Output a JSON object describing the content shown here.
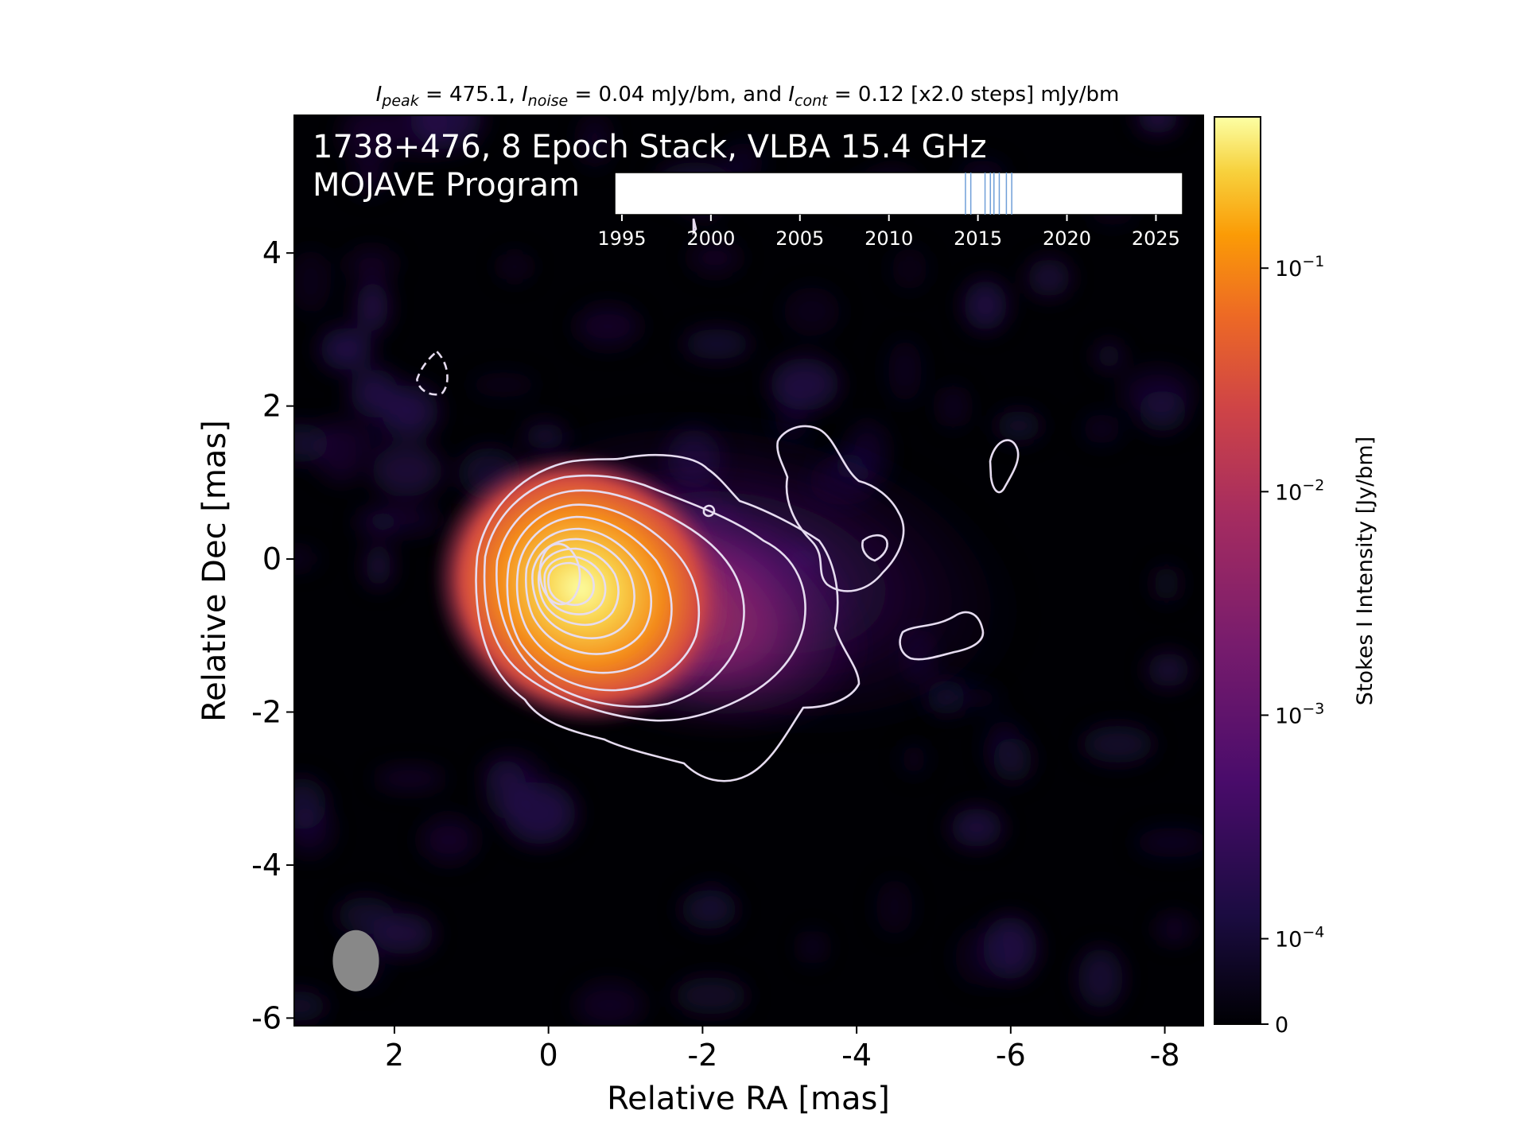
{
  "chart_data": {
    "type": "heatmap",
    "title": {
      "parts": [
        {
          "text": "I",
          "italic": true
        },
        {
          "text": "peak",
          "italic": true,
          "sub": true
        },
        {
          "text": " = 475.1, "
        },
        {
          "text": "I",
          "italic": true
        },
        {
          "text": "noise",
          "italic": true,
          "sub": true
        },
        {
          "text": " = 0.04 mJy/bm, and "
        },
        {
          "text": "I",
          "italic": true
        },
        {
          "text": "cont",
          "italic": true,
          "sub": true
        },
        {
          "text": " = 0.12 [x2.0 steps] mJy/bm"
        }
      ]
    },
    "annotation_lines": [
      "1738+476, 8 Epoch Stack, VLBA 15.4 GHz",
      "MOJAVE Program"
    ],
    "xlabel": "Relative RA [mas]",
    "ylabel": "Relative Dec [mas]",
    "xlim": [
      3.3,
      -8.5
    ],
    "ylim": [
      -6.1,
      5.8
    ],
    "x_ticks": [
      2,
      0,
      -2,
      -4,
      -6,
      -8
    ],
    "x_tick_labels": [
      "2",
      "0",
      "-2",
      "-4",
      "-6",
      "-8"
    ],
    "y_ticks": [
      4,
      2,
      0,
      -2,
      -4,
      -6
    ],
    "y_tick_labels": [
      "4",
      "2",
      "0",
      "-2",
      "-4",
      "-6"
    ],
    "colorbar": {
      "label": "Stokes I Intensity [Jy/bm]",
      "scale": "log",
      "range_jy": [
        0,
        0.475
      ],
      "ticks": [
        {
          "value": 0.1,
          "base": "10",
          "exp": "−1"
        },
        {
          "value": 0.01,
          "base": "10",
          "exp": "−2"
        },
        {
          "value": 0.001,
          "base": "10",
          "exp": "−3"
        },
        {
          "value": 0.0001,
          "base": "10",
          "exp": "−4"
        },
        {
          "value": 0,
          "label": "0"
        }
      ],
      "colormap": "inferno-like"
    },
    "peak": {
      "ra": 0.0,
      "dec": -0.2,
      "intensity_jy": 0.4751
    },
    "beam": {
      "ra": 2.5,
      "dec": -5.25,
      "major_mas": 0.8,
      "minor_mas": 0.6,
      "pa_deg": 0
    },
    "contours": {
      "base_mjy": 0.12,
      "factor": 2.0,
      "color": "#e6dcf0",
      "negative_contour": {
        "ra": 1.5,
        "dec": 2.4
      }
    },
    "epochs_inset": {
      "x_ticks": [
        1995,
        2000,
        2005,
        2010,
        2015,
        2020,
        2025
      ],
      "x_tick_labels": [
        "1995",
        "2000",
        "2005",
        "2010",
        "2015",
        "2020",
        "2025"
      ],
      "xlim": [
        1994.6,
        2026.5
      ],
      "epochs": [
        2014.3,
        2014.6,
        2015.4,
        2015.7,
        2015.9,
        2016.2,
        2016.6,
        2016.9
      ],
      "line_color": "#6f9fd8"
    }
  }
}
